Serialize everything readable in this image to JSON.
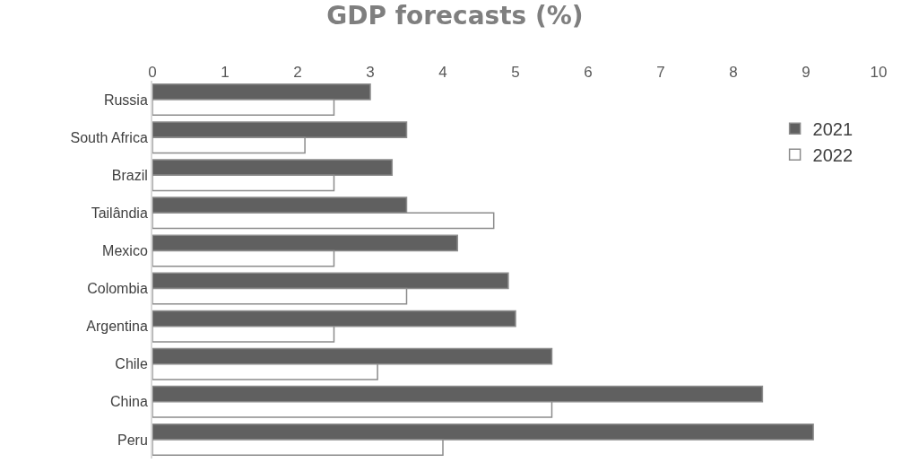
{
  "chart_data": {
    "type": "bar",
    "orientation": "horizontal",
    "title": "GDP forecasts (%)",
    "categories": [
      "Russia",
      "South Africa",
      "Brazil",
      "Tailândia",
      "Mexico",
      "Colombia",
      "Argentina",
      "Chile",
      "China",
      "Peru"
    ],
    "series": [
      {
        "name": "2021",
        "color": "#606060",
        "values": [
          3.0,
          3.5,
          3.3,
          3.5,
          4.2,
          4.9,
          5.0,
          5.5,
          8.4,
          9.1
        ]
      },
      {
        "name": "2022",
        "color": "#ffffff",
        "values": [
          2.5,
          2.1,
          2.5,
          4.7,
          2.5,
          3.5,
          2.5,
          3.1,
          5.5,
          4.0
        ]
      }
    ],
    "xlim": [
      0,
      10
    ],
    "xticks": [
      0,
      1,
      2,
      3,
      4,
      5,
      6,
      7,
      8,
      9,
      10
    ],
    "grid": false,
    "legend": "right"
  }
}
